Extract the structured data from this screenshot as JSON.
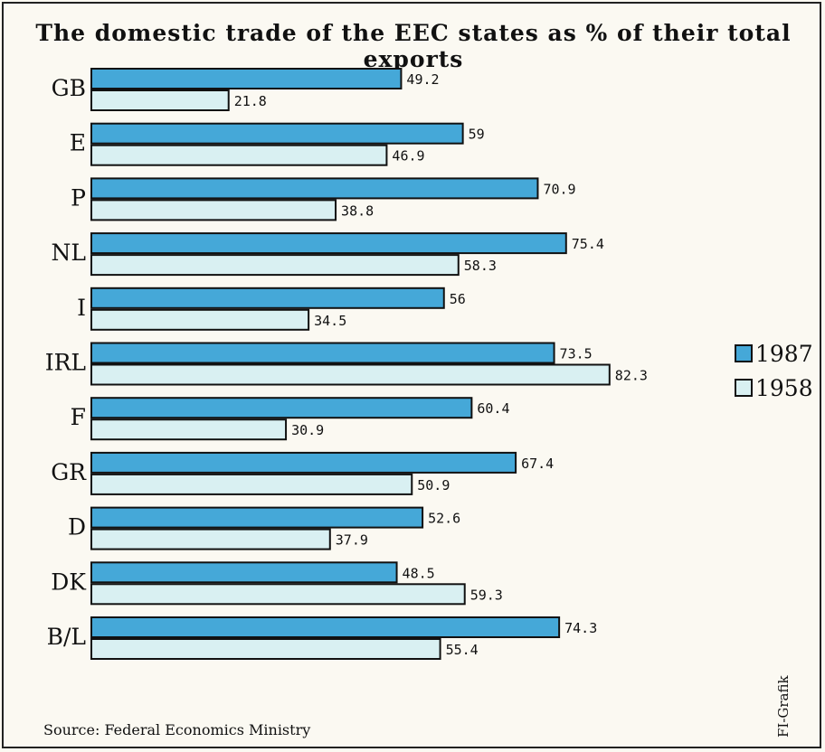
{
  "colors": {
    "y1987": "#45a8d8",
    "y1958": "#d9f0f2",
    "outline": "#111111"
  },
  "chart_data": {
    "type": "bar",
    "orientation": "horizontal",
    "title": "The domestic trade of the EEC states as % of their total exports",
    "categories": [
      "GB",
      "E",
      "P",
      "NL",
      "I",
      "IRL",
      "F",
      "GR",
      "D",
      "DK",
      "B/L"
    ],
    "series": [
      {
        "name": "1987",
        "values": [
          49.2,
          59,
          70.9,
          75.4,
          56,
          73.5,
          60.4,
          67.4,
          52.6,
          48.5,
          74.3
        ]
      },
      {
        "name": "1958",
        "values": [
          21.8,
          46.9,
          38.8,
          58.3,
          34.5,
          82.3,
          30.9,
          50.9,
          37.9,
          59.3,
          55.4
        ]
      }
    ],
    "value_labels": [
      [
        "49.2",
        "59",
        "70.9",
        "75.4",
        "56",
        "73.5",
        "60.4",
        "67.4",
        "52.6",
        "48.5",
        "74.3"
      ],
      [
        "21.8",
        "46.9",
        "38.8",
        "58.3",
        "34.5",
        "82.3",
        "30.9",
        "50.9",
        "37.9",
        "59.3",
        "55.4"
      ]
    ],
    "legend": [
      "1987",
      "1958"
    ],
    "legend_position": "right",
    "xlim": [
      0,
      100
    ],
    "grid": false
  },
  "footer": {
    "source": "Source: Federal Economics Ministry",
    "credit": "FI-Grafik"
  }
}
